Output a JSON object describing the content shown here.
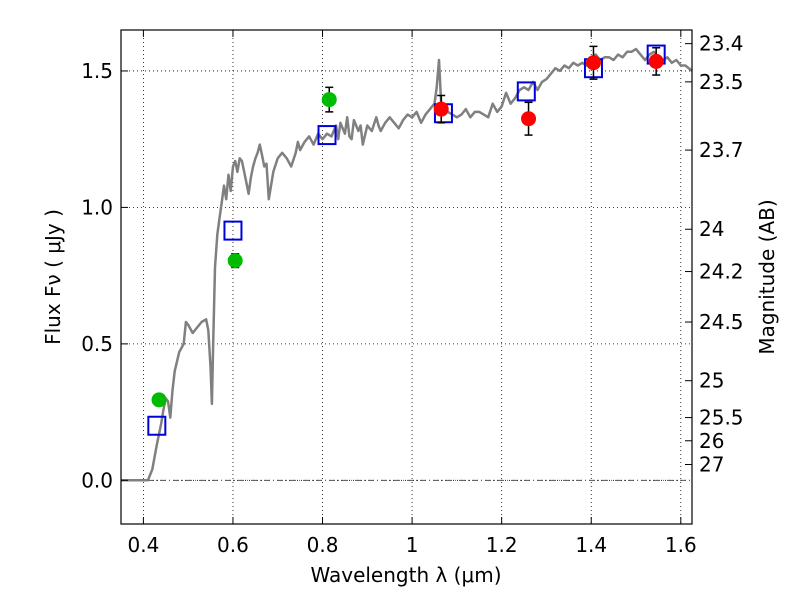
{
  "chart_data": {
    "type": "scatter",
    "xlabel": "Wavelength  λ (μm)",
    "ylabel": "Flux  Fν  ( μJy )",
    "ylabel_right": "Magnitude (AB)",
    "xlim": [
      0.35,
      1.625
    ],
    "ylim": [
      -0.16,
      1.65
    ],
    "x_ticks": [
      0.4,
      0.6,
      0.8,
      1.0,
      1.2,
      1.4,
      1.6
    ],
    "x_tick_labels": [
      "0.4",
      "0.6",
      "0.8",
      "1",
      "1.2",
      "1.4",
      "1.6"
    ],
    "y_ticks": [
      0.0,
      0.5,
      1.0,
      1.5
    ],
    "y_tick_labels": [
      "0.0",
      "0.5",
      "1.0",
      "1.5"
    ],
    "right_ticks": [
      {
        "label": "23.4",
        "flux": 1.6
      },
      {
        "label": "23.5",
        "flux": 1.46
      },
      {
        "label": "23.7",
        "flux": 1.21
      },
      {
        "label": "24",
        "flux": 0.92
      },
      {
        "label": "24.2",
        "flux": 0.765
      },
      {
        "label": "24.5",
        "flux": 0.58
      },
      {
        "label": "25",
        "flux": 0.365
      },
      {
        "label": "25.5",
        "flux": 0.23
      },
      {
        "label": "26",
        "flux": 0.145
      },
      {
        "label": "27",
        "flux": 0.058
      }
    ],
    "grid": true,
    "colors": {
      "spectrum": "#808080",
      "green_points": "#00bb00",
      "red_points": "#ff0000",
      "model_squares": "#0000dd",
      "errorbar": "#000000"
    },
    "series": [
      {
        "kind": "line",
        "points": [
          [
            0.35,
            0.0
          ],
          [
            0.41,
            0.0
          ],
          [
            0.42,
            0.04
          ],
          [
            0.43,
            0.13
          ],
          [
            0.44,
            0.21
          ],
          [
            0.445,
            0.26
          ],
          [
            0.45,
            0.3
          ],
          [
            0.455,
            0.29
          ],
          [
            0.46,
            0.23
          ],
          [
            0.465,
            0.33
          ],
          [
            0.47,
            0.4
          ],
          [
            0.48,
            0.47
          ],
          [
            0.49,
            0.5
          ],
          [
            0.495,
            0.58
          ],
          [
            0.5,
            0.57
          ],
          [
            0.51,
            0.54
          ],
          [
            0.52,
            0.56
          ],
          [
            0.53,
            0.58
          ],
          [
            0.54,
            0.59
          ],
          [
            0.545,
            0.55
          ],
          [
            0.55,
            0.41
          ],
          [
            0.553,
            0.28
          ],
          [
            0.556,
            0.52
          ],
          [
            0.56,
            0.78
          ],
          [
            0.565,
            0.9
          ],
          [
            0.57,
            0.96
          ],
          [
            0.575,
            1.02
          ],
          [
            0.58,
            1.08
          ],
          [
            0.585,
            1.03
          ],
          [
            0.59,
            1.12
          ],
          [
            0.595,
            1.06
          ],
          [
            0.6,
            1.15
          ],
          [
            0.605,
            1.17
          ],
          [
            0.61,
            1.13
          ],
          [
            0.615,
            1.18
          ],
          [
            0.62,
            1.17
          ],
          [
            0.625,
            1.13
          ],
          [
            0.63,
            1.09
          ],
          [
            0.635,
            1.05
          ],
          [
            0.64,
            1.11
          ],
          [
            0.645,
            1.15
          ],
          [
            0.65,
            1.18
          ],
          [
            0.655,
            1.2
          ],
          [
            0.66,
            1.23
          ],
          [
            0.665,
            1.19
          ],
          [
            0.67,
            1.15
          ],
          [
            0.675,
            1.16
          ],
          [
            0.68,
            1.03
          ],
          [
            0.69,
            1.13
          ],
          [
            0.7,
            1.18
          ],
          [
            0.71,
            1.2
          ],
          [
            0.72,
            1.18
          ],
          [
            0.73,
            1.15
          ],
          [
            0.74,
            1.2
          ],
          [
            0.745,
            1.24
          ],
          [
            0.75,
            1.21
          ],
          [
            0.76,
            1.24
          ],
          [
            0.77,
            1.26
          ],
          [
            0.78,
            1.23
          ],
          [
            0.79,
            1.27
          ],
          [
            0.8,
            1.25
          ],
          [
            0.81,
            1.27
          ],
          [
            0.82,
            1.26
          ],
          [
            0.83,
            1.3
          ],
          [
            0.835,
            1.25
          ],
          [
            0.84,
            1.31
          ],
          [
            0.85,
            1.27
          ],
          [
            0.855,
            1.33
          ],
          [
            0.86,
            1.26
          ],
          [
            0.865,
            1.25
          ],
          [
            0.87,
            1.32
          ],
          [
            0.88,
            1.28
          ],
          [
            0.885,
            1.3
          ],
          [
            0.89,
            1.23
          ],
          [
            0.9,
            1.3
          ],
          [
            0.91,
            1.28
          ],
          [
            0.92,
            1.33
          ],
          [
            0.925,
            1.3
          ],
          [
            0.93,
            1.28
          ],
          [
            0.94,
            1.31
          ],
          [
            0.95,
            1.33
          ],
          [
            0.96,
            1.31
          ],
          [
            0.97,
            1.29
          ],
          [
            0.98,
            1.32
          ],
          [
            0.99,
            1.34
          ],
          [
            1.0,
            1.33
          ],
          [
            1.01,
            1.35
          ],
          [
            1.02,
            1.31
          ],
          [
            1.03,
            1.34
          ],
          [
            1.04,
            1.36
          ],
          [
            1.05,
            1.38
          ],
          [
            1.055,
            1.44
          ],
          [
            1.06,
            1.54
          ],
          [
            1.065,
            1.38
          ],
          [
            1.07,
            1.37
          ],
          [
            1.08,
            1.35
          ],
          [
            1.09,
            1.34
          ],
          [
            1.1,
            1.33
          ],
          [
            1.11,
            1.34
          ],
          [
            1.12,
            1.36
          ],
          [
            1.13,
            1.33
          ],
          [
            1.14,
            1.35
          ],
          [
            1.15,
            1.35
          ],
          [
            1.16,
            1.34
          ],
          [
            1.17,
            1.33
          ],
          [
            1.18,
            1.38
          ],
          [
            1.19,
            1.35
          ],
          [
            1.2,
            1.37
          ],
          [
            1.21,
            1.42
          ],
          [
            1.22,
            1.38
          ],
          [
            1.23,
            1.4
          ],
          [
            1.24,
            1.43
          ],
          [
            1.25,
            1.44
          ],
          [
            1.26,
            1.43
          ],
          [
            1.27,
            1.46
          ],
          [
            1.28,
            1.43
          ],
          [
            1.29,
            1.46
          ],
          [
            1.3,
            1.47
          ],
          [
            1.31,
            1.49
          ],
          [
            1.32,
            1.51
          ],
          [
            1.33,
            1.5
          ],
          [
            1.34,
            1.52
          ],
          [
            1.35,
            1.51
          ],
          [
            1.36,
            1.53
          ],
          [
            1.37,
            1.52
          ],
          [
            1.38,
            1.53
          ],
          [
            1.39,
            1.52
          ],
          [
            1.4,
            1.55
          ],
          [
            1.41,
            1.56
          ],
          [
            1.42,
            1.54
          ],
          [
            1.43,
            1.55
          ],
          [
            1.44,
            1.55
          ],
          [
            1.45,
            1.54
          ],
          [
            1.46,
            1.56
          ],
          [
            1.47,
            1.55
          ],
          [
            1.48,
            1.57
          ],
          [
            1.49,
            1.57
          ],
          [
            1.5,
            1.58
          ],
          [
            1.51,
            1.56
          ],
          [
            1.52,
            1.54
          ],
          [
            1.53,
            1.56
          ],
          [
            1.54,
            1.57
          ],
          [
            1.55,
            1.55
          ],
          [
            1.56,
            1.54
          ],
          [
            1.57,
            1.55
          ],
          [
            1.58,
            1.53
          ],
          [
            1.59,
            1.54
          ],
          [
            1.6,
            1.52
          ],
          [
            1.61,
            1.52
          ],
          [
            1.625,
            1.5
          ]
        ]
      },
      {
        "kind": "points",
        "marker": "circle",
        "color_key": "green_points",
        "points": [
          {
            "x": 0.435,
            "y": 0.295,
            "err": 0.02
          },
          {
            "x": 0.605,
            "y": 0.805,
            "err": 0.025
          },
          {
            "x": 0.815,
            "y": 1.395,
            "err": 0.045
          }
        ]
      },
      {
        "kind": "points",
        "marker": "circle",
        "color_key": "red_points",
        "points": [
          {
            "x": 1.065,
            "y": 1.36,
            "err": 0.05
          },
          {
            "x": 1.26,
            "y": 1.325,
            "err": 0.06
          },
          {
            "x": 1.405,
            "y": 1.53,
            "err": 0.06
          },
          {
            "x": 1.545,
            "y": 1.535,
            "err": 0.05
          }
        ]
      },
      {
        "kind": "points",
        "marker": "square",
        "color_key": "model_squares",
        "points": [
          {
            "x": 0.43,
            "y": 0.2
          },
          {
            "x": 0.6,
            "y": 0.915
          },
          {
            "x": 0.81,
            "y": 1.265
          },
          {
            "x": 1.07,
            "y": 1.345
          },
          {
            "x": 1.255,
            "y": 1.425
          },
          {
            "x": 1.405,
            "y": 1.51
          },
          {
            "x": 1.545,
            "y": 1.56
          }
        ]
      }
    ]
  }
}
